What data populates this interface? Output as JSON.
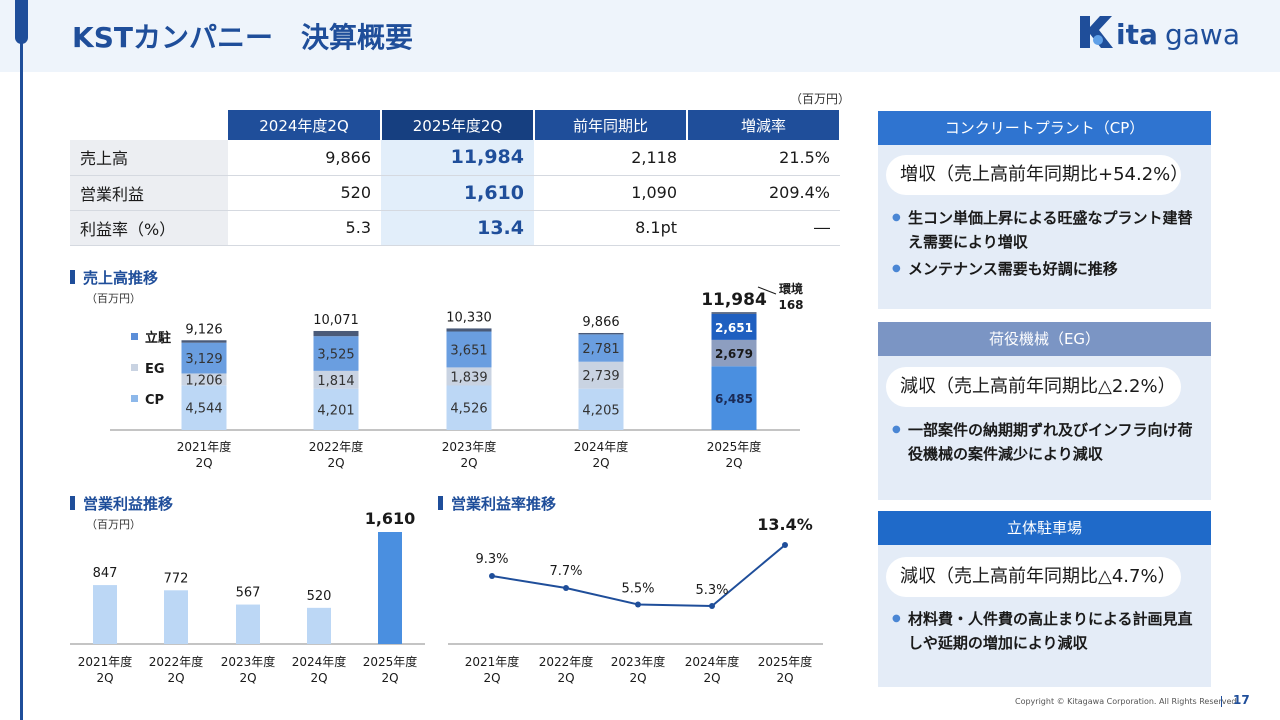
{
  "header": {
    "title": "KSTカンパニー　決算概要",
    "logo": "kitagawa"
  },
  "table": {
    "unit": "（百万円）",
    "columns": [
      "2024年度2Q",
      "2025年度2Q",
      "前年同期比",
      "増減率"
    ],
    "rows": [
      {
        "label": "売上高",
        "v2024": "9,866",
        "v2025": "11,984",
        "diff": "2,118",
        "rate": "21.5%"
      },
      {
        "label": "営業利益",
        "v2024": "520",
        "v2025": "1,610",
        "diff": "1,090",
        "rate": "209.4%"
      },
      {
        "label": "利益率（%）",
        "v2024": "5.3",
        "v2025": "13.4",
        "diff": "8.1pt",
        "rate": "―"
      }
    ]
  },
  "sales_section": {
    "title": "売上高推移",
    "unit": "（百万円）",
    "env_label": "環境",
    "env_value": "168"
  },
  "op_section": {
    "title": "営業利益推移",
    "unit": "（百万円）"
  },
  "rate_section": {
    "title": "営業利益率推移"
  },
  "chart_data": [
    {
      "type": "bar",
      "stacked": true,
      "title": "売上高推移",
      "categories": [
        "2021年度 2Q",
        "2022年度 2Q",
        "2023年度 2Q",
        "2024年度 2Q",
        "2025年度 2Q"
      ],
      "series": [
        {
          "name": "CP",
          "values": [
            4544,
            4201,
            4526,
            4205,
            6485
          ]
        },
        {
          "name": "EG",
          "values": [
            1206,
            1814,
            1839,
            2739,
            2679
          ]
        },
        {
          "name": "立駐",
          "values": [
            3129,
            3525,
            3651,
            2781,
            2651
          ]
        },
        {
          "name": "環境",
          "values": [
            247,
            531,
            314,
            141,
            168
          ]
        }
      ],
      "value_labels": {
        "CP": [
          "4,544",
          "4,201",
          "4,526",
          "4,205",
          "6,485"
        ],
        "EG": [
          "1,206",
          "1,814",
          "1,839",
          "2,739",
          "2,679"
        ],
        "立駐": [
          "3,129",
          "3,525",
          "3,651",
          "2,781",
          "2,651"
        ]
      },
      "totals": [
        "9,126",
        "10,071",
        "10,330",
        "9,866",
        "11,984"
      ],
      "legend": [
        "立駐",
        "EG",
        "CP"
      ],
      "ylim": [
        0,
        12500
      ]
    },
    {
      "type": "bar",
      "title": "営業利益推移",
      "categories": [
        "2021年度 2Q",
        "2022年度 2Q",
        "2023年度 2Q",
        "2024年度 2Q",
        "2025年度 2Q"
      ],
      "values": [
        847,
        772,
        567,
        520,
        1610
      ],
      "labels": [
        "847",
        "772",
        "567",
        "520",
        "1,610"
      ],
      "ylim": [
        0,
        1700
      ]
    },
    {
      "type": "line",
      "title": "営業利益率推移",
      "categories": [
        "2021年度 2Q",
        "2022年度 2Q",
        "2023年度 2Q",
        "2024年度 2Q",
        "2025年度 2Q"
      ],
      "values": [
        9.3,
        7.7,
        5.5,
        5.3,
        13.4
      ],
      "labels": [
        "9.3%",
        "7.7%",
        "5.5%",
        "5.3%",
        "13.4%"
      ],
      "ylim": [
        0,
        16
      ]
    }
  ],
  "colors": {
    "cp": "#bcd7f5",
    "eg": "#c9d3e2",
    "park": "#6a9ee0",
    "env": "#4a5a78",
    "dark": "#1f4e9a",
    "accent": "#2f74d0"
  },
  "panels": [
    {
      "header": "コンクリートプラント（CP）",
      "headline": "増収（売上高前年同期比+54.2%）",
      "bullets": [
        "生コン単価上昇による旺盛なプラント建替え需要により増収",
        "メンテナンス需要も好調に推移"
      ]
    },
    {
      "header": "荷役機械（EG）",
      "headline": "減収（売上高前年同期比△2.2%）",
      "bullets": [
        "一部案件の納期期ずれ及びインフラ向け荷役機械の案件減少により減収"
      ]
    },
    {
      "header": "立体駐車場",
      "headline": "減収（売上高前年同期比△4.7%）",
      "bullets": [
        "材料費・人件費の高止まりによる計画見直しや延期の増加により減収"
      ]
    }
  ],
  "footer": {
    "copyright": "Copyright © Kitagawa Corporation. All Rights Reserved.",
    "page": "17"
  }
}
